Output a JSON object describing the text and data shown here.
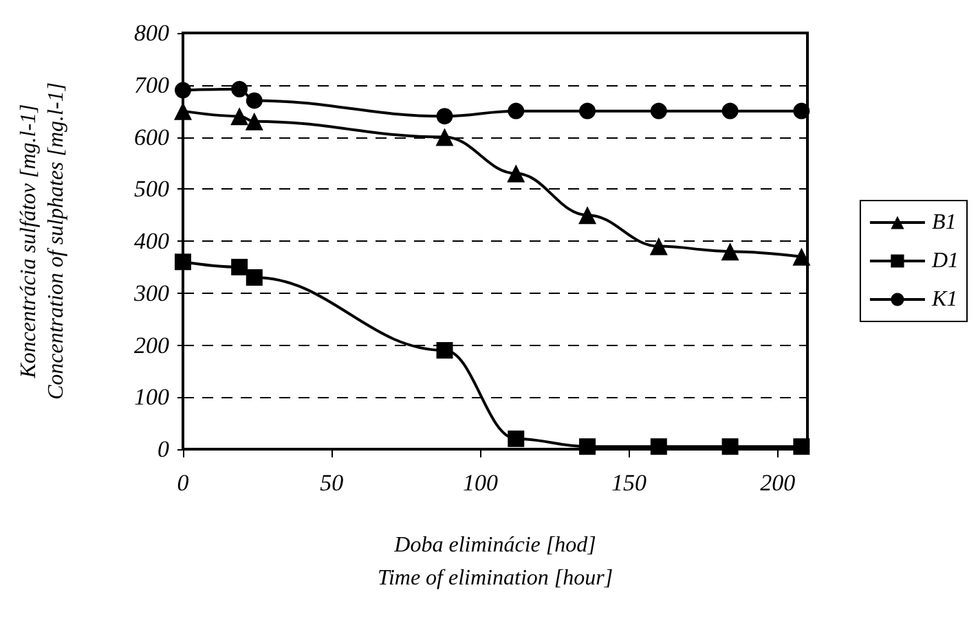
{
  "chart_data": {
    "type": "line",
    "xlabel": "Doba eliminácie [hod]\nTime of elimination [hour]",
    "ylabel": "Koncentrácia sulfátov [mg.l-1]\nConcentration of sulphates [mg.l-1]",
    "x": [
      0,
      19,
      24,
      88,
      112,
      136,
      160,
      184,
      208
    ],
    "series": [
      {
        "name": "B1",
        "color": "#000000",
        "marker": "triangle",
        "values": [
          650,
          640,
          630,
          600,
          530,
          450,
          390,
          380,
          370
        ]
      },
      {
        "name": "D1",
        "color": "#000000",
        "marker": "square",
        "values": [
          360,
          350,
          330,
          190,
          20,
          5,
          5,
          5,
          5
        ]
      },
      {
        "name": "K1",
        "color": "#000000",
        "marker": "circle",
        "values": [
          690,
          692,
          670,
          640,
          650,
          650,
          650,
          650,
          650
        ]
      }
    ],
    "xlim": [
      0,
      210
    ],
    "xticks": [
      0,
      50,
      100,
      150,
      200
    ],
    "ylim": [
      0,
      800
    ],
    "yticks": [
      0,
      100,
      200,
      300,
      400,
      500,
      600,
      700,
      800
    ],
    "grid": "y",
    "legend": "right",
    "line_style": "solid"
  }
}
